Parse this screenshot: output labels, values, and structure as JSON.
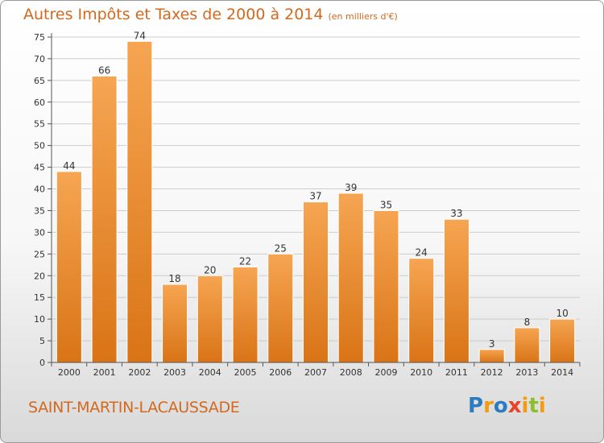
{
  "header": {
    "title": "Autres Impôts et Taxes de 2000 à 2014",
    "unit": "(en milliers d'€)"
  },
  "footer": {
    "commune": "SAINT-MARTIN-LACAUSSADE",
    "logo_letters": [
      "P",
      "r",
      "o",
      "x",
      "i",
      "t",
      "i"
    ],
    "logo_colors": [
      "#2b7bbf",
      "#f39c12",
      "#2b7bbf",
      "#e8432a",
      "#f39c12",
      "#8bbf2b",
      "#f39c12"
    ]
  },
  "colors": {
    "bar_top": "#f6a552",
    "bar_bottom": "#d97416",
    "bar_edge": "#ffffff",
    "grid": "#cccccc",
    "title": "#d2691e"
  },
  "chart_data": {
    "type": "bar",
    "title": "Autres Impôts et Taxes de 2000 à 2014",
    "subtitle": "(en milliers d'€)",
    "categories": [
      "2000",
      "2001",
      "2002",
      "2003",
      "2004",
      "2005",
      "2006",
      "2007",
      "2008",
      "2009",
      "2010",
      "2011",
      "2012",
      "2013",
      "2014"
    ],
    "values": [
      44,
      66,
      74,
      18,
      20,
      22,
      25,
      37,
      39,
      35,
      24,
      33,
      3,
      8,
      10
    ],
    "ylim": [
      0,
      75
    ],
    "yticks": [
      0,
      5,
      10,
      15,
      20,
      25,
      30,
      35,
      40,
      45,
      50,
      55,
      60,
      65,
      70,
      75
    ],
    "grid": true,
    "data_labels": true
  }
}
